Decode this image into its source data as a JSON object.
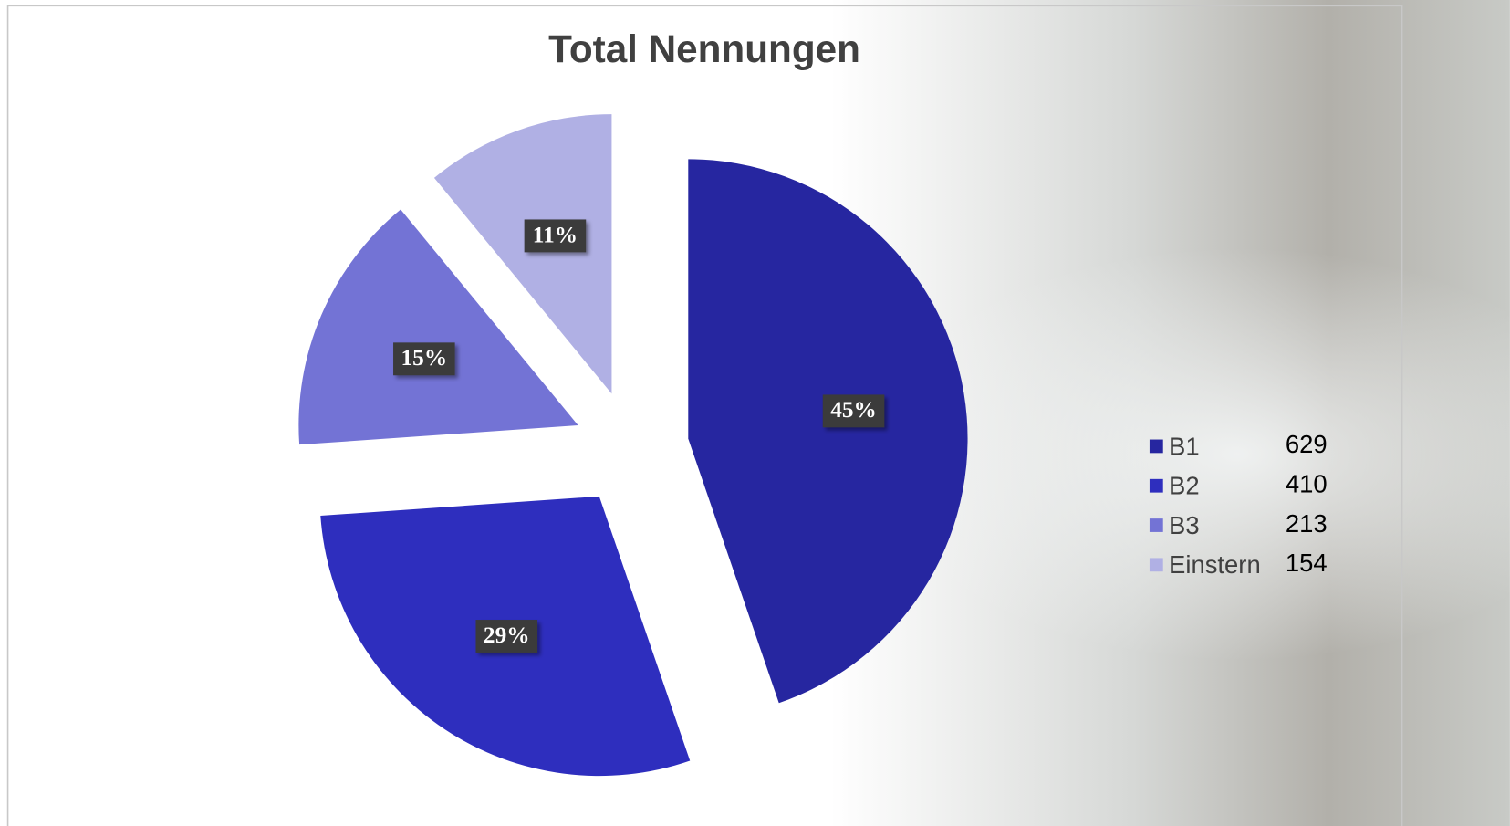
{
  "chart_data": {
    "type": "pie",
    "title": "Total Nennungen",
    "categories": [
      "B1",
      "B2",
      "B3",
      "Einstern"
    ],
    "values": [
      629,
      410,
      213,
      154
    ],
    "value_labels": [
      "45%",
      "29%",
      "15%",
      "11%"
    ],
    "colors": [
      "#2626a0",
      "#2e2ebe",
      "#7373d5",
      "#b0b0e4"
    ],
    "legend": "right"
  }
}
